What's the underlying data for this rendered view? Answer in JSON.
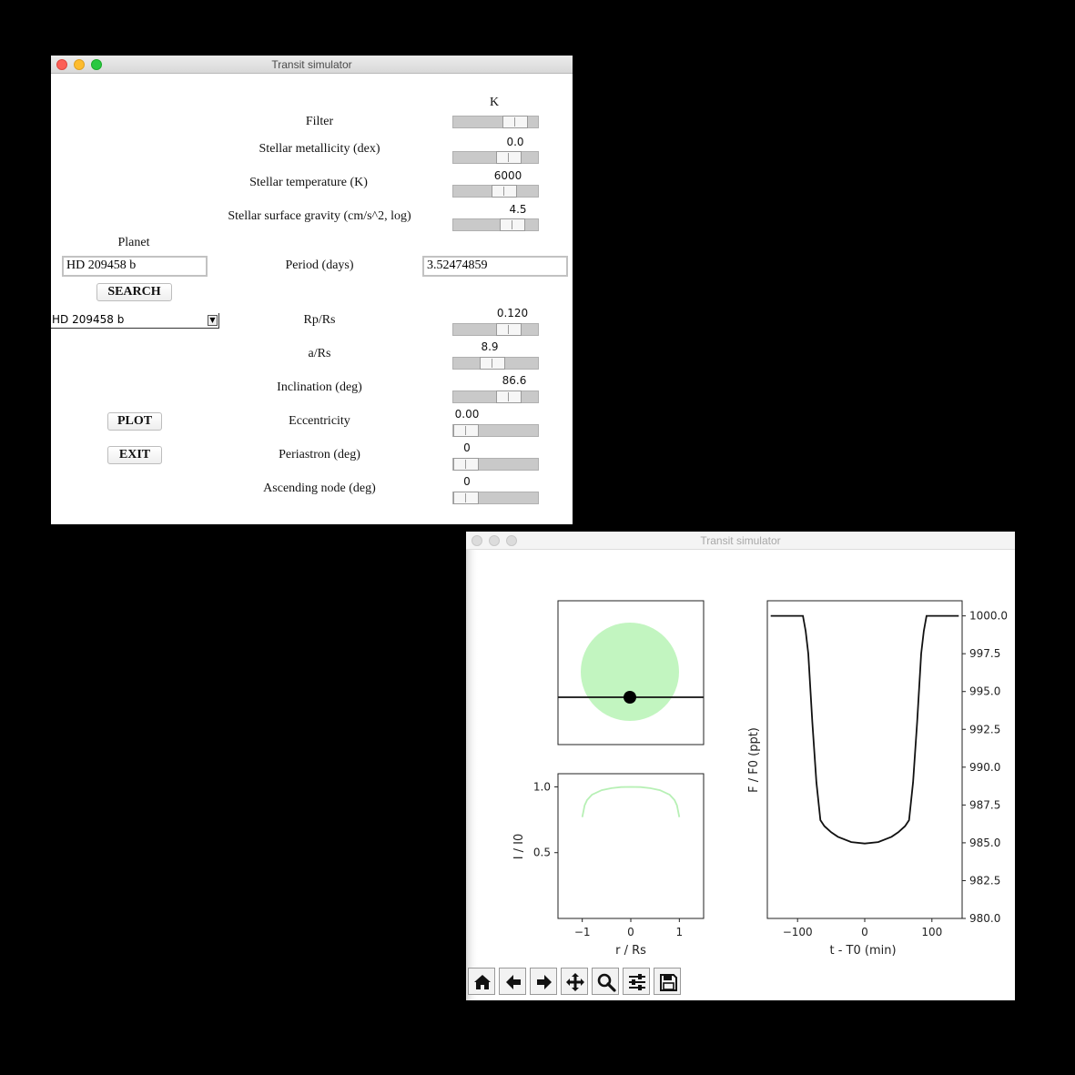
{
  "window1": {
    "title": "Transit simulator",
    "filter": {
      "label": "Filter",
      "value": "K",
      "fraction": 0.83
    },
    "metallicity": {
      "label": "Stellar metallicity (dex)",
      "value": "0.0",
      "fraction": 0.72
    },
    "temperature": {
      "label": "Stellar temperature (K)",
      "value": "6000",
      "fraction": 0.64
    },
    "gravity": {
      "label": "Stellar surface gravity (cm/s^2, log)",
      "value": "4.5",
      "fraction": 0.79
    },
    "planet_label": "Planet",
    "planet_input": "HD 209458 b",
    "period": {
      "label": "Period (days)",
      "value": "3.52474859"
    },
    "search_button": "SEARCH",
    "planet_dropdown": "HD 209458 b",
    "rprs": {
      "label": "Rp/Rs",
      "value": "0.120",
      "fraction": 0.72
    },
    "ars": {
      "label": "a/Rs",
      "value": "8.9",
      "fraction": 0.44
    },
    "inclination": {
      "label": "Inclination (deg)",
      "value": "86.6",
      "fraction": 0.72
    },
    "eccentricity": {
      "label": "Eccentricity",
      "value": "0.00",
      "fraction": 0.0
    },
    "periastron": {
      "label": "Periastron (deg)",
      "value": "0",
      "fraction": 0.0
    },
    "ascending_node": {
      "label": "Ascending node (deg)",
      "value": "0",
      "fraction": 0.0
    },
    "plot_button": "PLOT",
    "exit_button": "EXIT"
  },
  "window2": {
    "title": "Transit simulator",
    "colors": {
      "star": "#c2f5c0",
      "curve": "#111111",
      "profile": "#b7f0b5"
    },
    "toolbar": [
      "home-icon",
      "back-arrow-icon",
      "forward-arrow-icon",
      "pan-icon",
      "zoom-icon",
      "configure-icon",
      "save-icon"
    ]
  },
  "chart_data": [
    {
      "type": "scatter",
      "title": "",
      "description_key": "orbit-view",
      "x": [
        0.0
      ],
      "y": [
        -0.52
      ],
      "xlim": [
        -1.5,
        1.5
      ],
      "ylim": [
        -1.0,
        1.0
      ],
      "planet_radius": 0.12
    },
    {
      "type": "line",
      "xlabel": "r / Rs",
      "ylabel": "I / I0",
      "xlim": [
        -1.5,
        1.5
      ],
      "ylim": [
        0.0,
        1.1
      ],
      "xticks": [
        "−1",
        "0",
        "1"
      ],
      "yticks": [
        "0.5",
        "1.0"
      ],
      "x": [
        -1.0,
        -0.95,
        -0.9,
        -0.8,
        -0.6,
        -0.4,
        -0.2,
        0.0,
        0.2,
        0.4,
        0.6,
        0.8,
        0.9,
        0.95,
        1.0
      ],
      "y": [
        0.77,
        0.86,
        0.9,
        0.94,
        0.975,
        0.99,
        0.998,
        1.0,
        0.998,
        0.99,
        0.975,
        0.94,
        0.9,
        0.86,
        0.77
      ]
    },
    {
      "type": "line",
      "xlabel": "t - T0 (min)",
      "ylabel": "F / F0 (ppt)",
      "xlim": [
        -145,
        145
      ],
      "ylim": [
        980,
        1001
      ],
      "xticks": [
        "−100",
        "0",
        "100"
      ],
      "yticks": [
        "1000.0",
        "997.5",
        "995.0",
        "992.5",
        "990.0",
        "987.5",
        "985.0",
        "982.5",
        "980.0"
      ],
      "x": [
        -140,
        -92,
        -88,
        -84,
        -78,
        -72,
        -66,
        -60,
        -50,
        -40,
        -20,
        0,
        20,
        40,
        50,
        60,
        66,
        72,
        78,
        84,
        88,
        92,
        140
      ],
      "y": [
        1000,
        1000,
        999,
        997.5,
        993,
        989,
        986.5,
        986.1,
        985.7,
        985.4,
        985.05,
        984.95,
        985.05,
        985.4,
        985.7,
        986.1,
        986.5,
        989,
        993,
        997.5,
        999,
        1000,
        1000
      ]
    }
  ]
}
